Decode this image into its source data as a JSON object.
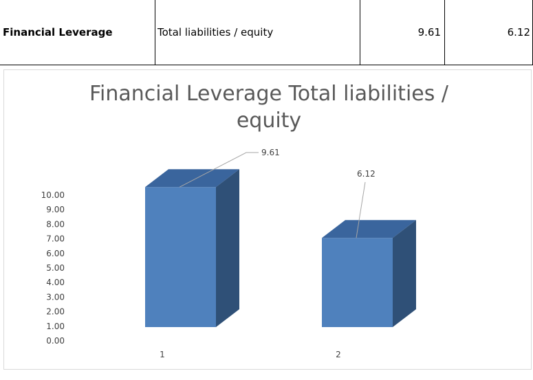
{
  "table": {
    "metric": "Financial Leverage",
    "formula": "Total liabilities / equity",
    "value_1": "9.61",
    "value_2": "6.12"
  },
  "chart_data": {
    "type": "bar",
    "title_line1": "Financial Leverage Total liabilities /",
    "title_line2": "equity",
    "categories": [
      "1",
      "2"
    ],
    "values": [
      9.61,
      6.12
    ],
    "data_labels": [
      "9.61",
      "6.12"
    ],
    "y_ticks": [
      "0.00",
      "1.00",
      "2.00",
      "3.00",
      "4.00",
      "5.00",
      "6.00",
      "7.00",
      "8.00",
      "9.00",
      "10.00"
    ],
    "ylim": [
      0,
      10
    ],
    "grid": false,
    "legend": "none",
    "colors": {
      "front": "#4f81bd",
      "top": "#3a659d",
      "side": "#2f5077",
      "title": "#595959",
      "label": "#404040"
    }
  }
}
